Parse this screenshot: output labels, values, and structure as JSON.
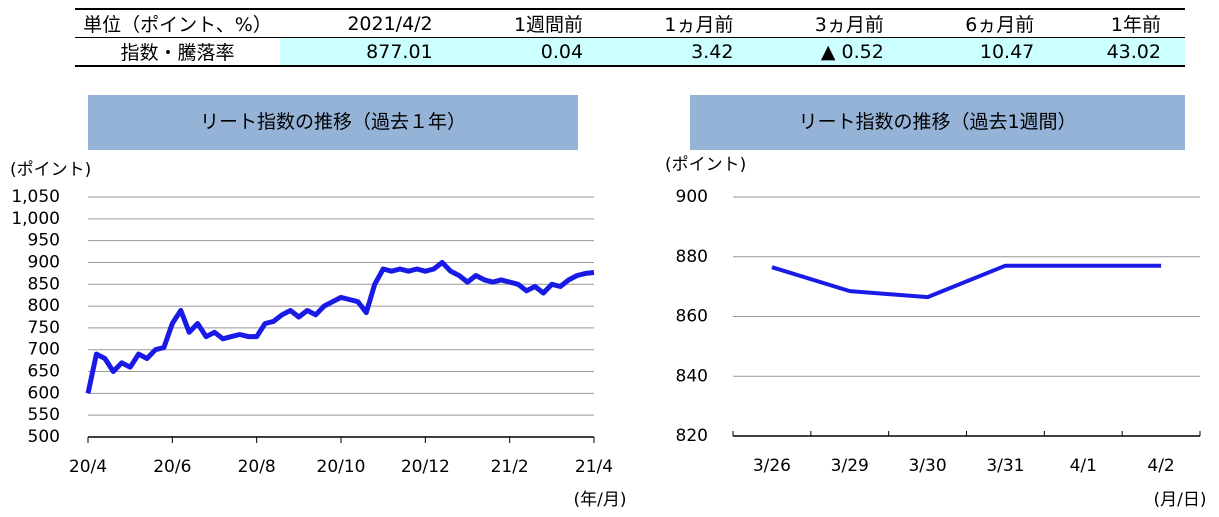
{
  "table": {
    "header": [
      "単位（ポイント、%）",
      "2021/4/2",
      "1週間前",
      "1ヵ月前",
      "3ヵ月前",
      "6ヵ月前",
      "1年前"
    ],
    "rows": [
      [
        "指数・騰落率",
        "877.01",
        "0.04",
        "3.42",
        "▲ 0.52",
        "10.47",
        "43.02"
      ]
    ]
  },
  "chart_data": [
    {
      "type": "line",
      "title": "リート指数の推移（過去１年）",
      "y_label": "(ポイント)",
      "x_label": "(年/月)",
      "categories": [
        "20/4",
        null,
        null,
        null,
        null,
        null,
        null,
        null,
        null,
        null,
        "20/6",
        null,
        null,
        null,
        null,
        null,
        null,
        null,
        null,
        null,
        "20/8",
        null,
        null,
        null,
        null,
        null,
        null,
        null,
        null,
        null,
        "20/10",
        null,
        null,
        null,
        null,
        null,
        null,
        null,
        null,
        null,
        "20/12",
        null,
        null,
        null,
        null,
        null,
        null,
        null,
        null,
        null,
        "21/2",
        null,
        null,
        null,
        null,
        null,
        null,
        null,
        null,
        null,
        "21/4"
      ],
      "series": [
        {
          "name": "リート指数",
          "color": "#1a1ae6",
          "values": [
            600,
            690,
            680,
            650,
            670,
            660,
            690,
            680,
            700,
            705,
            760,
            790,
            740,
            760,
            730,
            740,
            725,
            730,
            735,
            730,
            730,
            760,
            765,
            780,
            790,
            775,
            790,
            780,
            800,
            810,
            820,
            815,
            810,
            785,
            850,
            885,
            880,
            885,
            880,
            885,
            880,
            885,
            900,
            880,
            870,
            855,
            870,
            860,
            855,
            860,
            855,
            850,
            835,
            845,
            830,
            850,
            845,
            860,
            870,
            875,
            877
          ]
        }
      ],
      "ylim": [
        500,
        1050
      ],
      "yticks": [
        500,
        550,
        600,
        650,
        700,
        750,
        800,
        850,
        900,
        950,
        {
          "value": 1000,
          "label": "1,000"
        },
        {
          "value": 1050,
          "label": "1,050"
        }
      ],
      "grid": true
    },
    {
      "type": "line",
      "title": "リート指数の推移（過去1週間）",
      "y_label": "(ポイント)",
      "x_label": "(月/日)",
      "categories": [
        "3/26",
        "3/29",
        "3/30",
        "3/31",
        "4/1",
        "4/2"
      ],
      "series": [
        {
          "name": "リート指数",
          "color": "#1a1ae6",
          "values": [
            876.5,
            868.5,
            866.5,
            877,
            877,
            877
          ]
        }
      ],
      "ylim": [
        820,
        900
      ],
      "yticks": [
        820,
        840,
        860,
        880,
        900
      ],
      "grid": true
    }
  ]
}
